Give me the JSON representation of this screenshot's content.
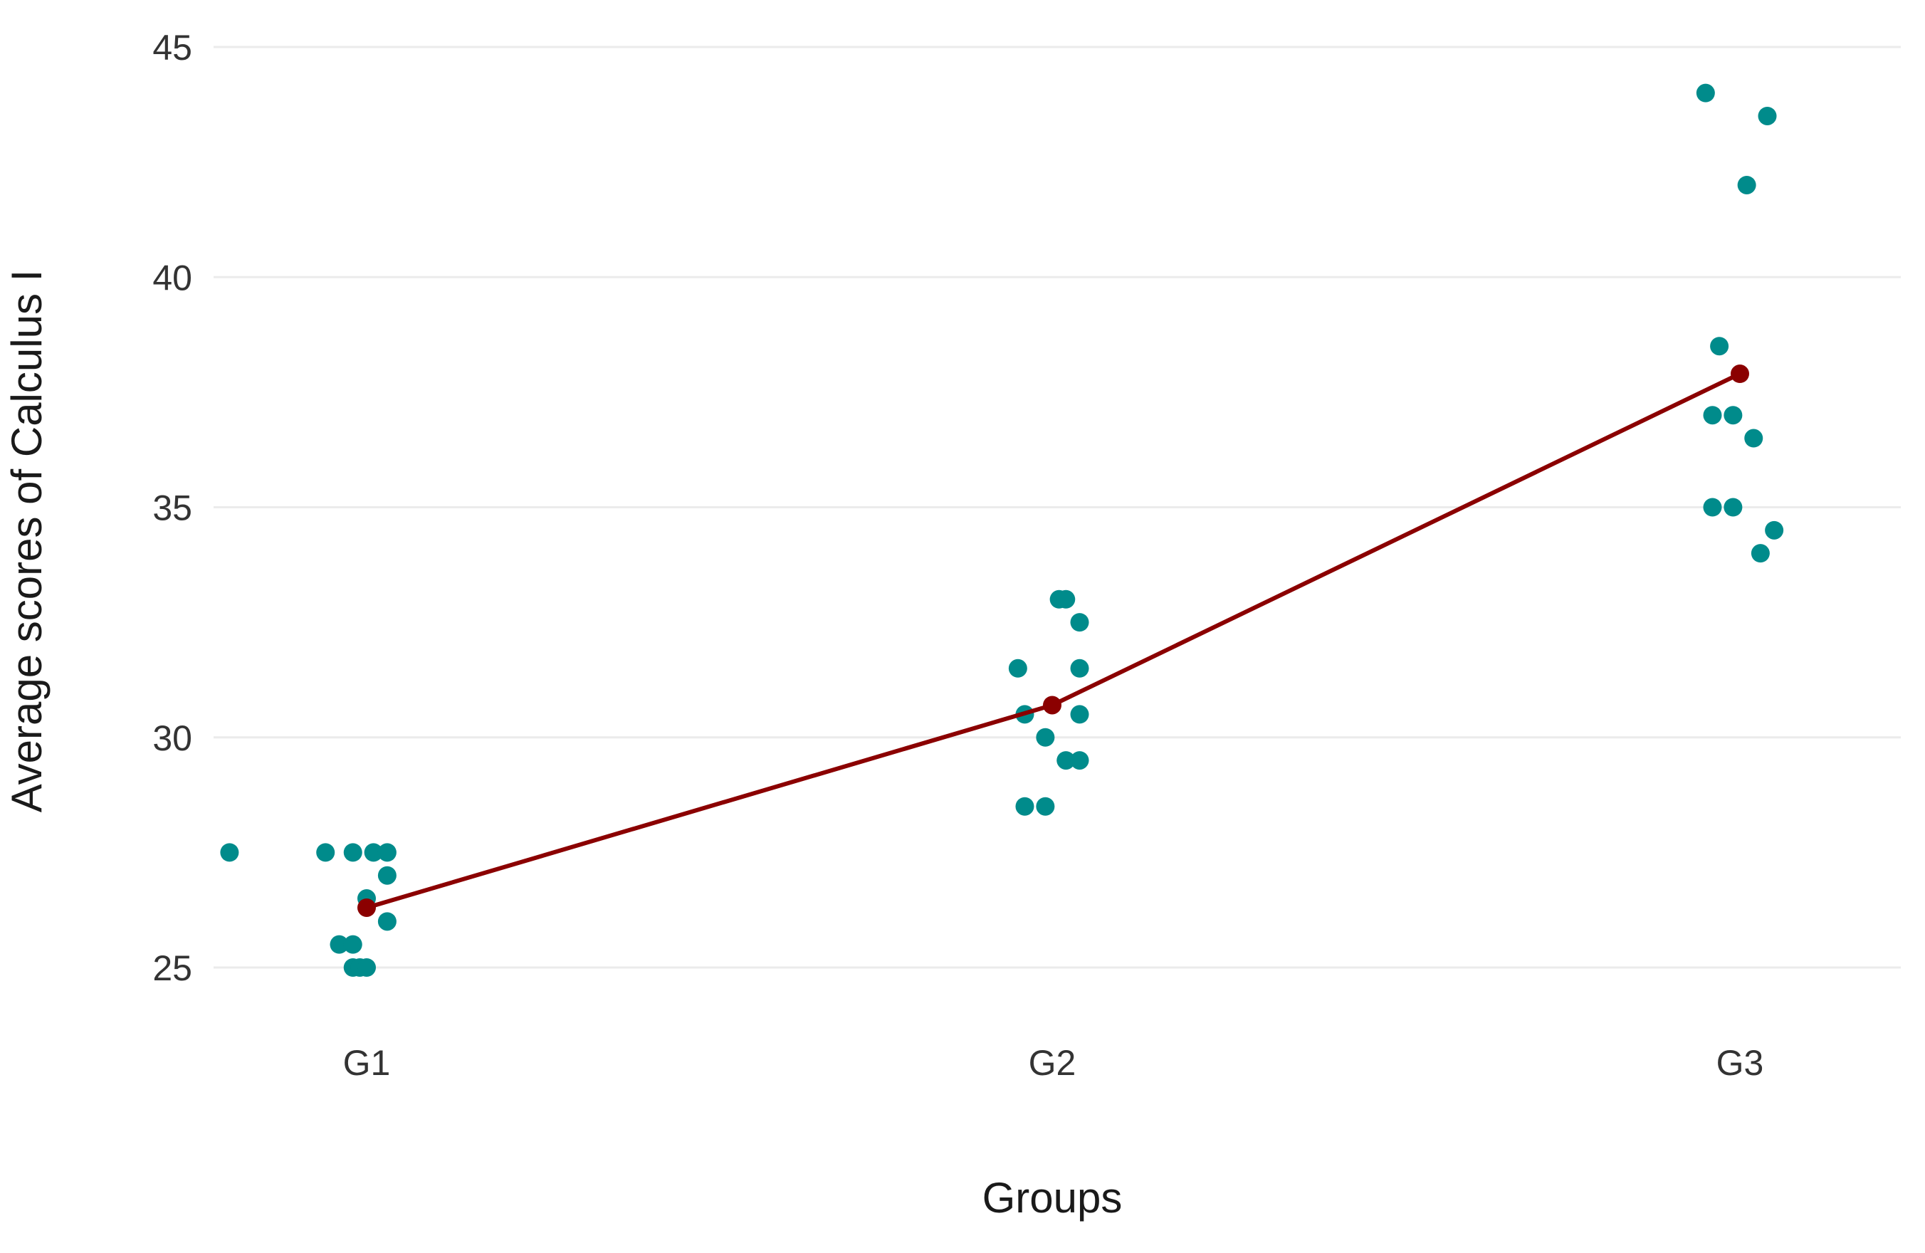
{
  "chart_data": {
    "type": "scatter",
    "title": "",
    "xlabel": "Groups",
    "ylabel": "Average scores of Calculus I",
    "categories": [
      "G1",
      "G2",
      "G3"
    ],
    "ylim": [
      23.6,
      45.2
    ],
    "yticks": [
      25,
      30,
      35,
      40,
      45
    ],
    "grid": true,
    "legend": "none",
    "series": [
      {
        "kind": "points",
        "color": "#008b8b",
        "points": [
          {
            "x": "G1",
            "jitter": -0.2,
            "y": 27.5
          },
          {
            "x": "G1",
            "jitter": -0.06,
            "y": 27.5
          },
          {
            "x": "G1",
            "jitter": -0.02,
            "y": 27.5
          },
          {
            "x": "G1",
            "jitter": 0.01,
            "y": 27.5
          },
          {
            "x": "G1",
            "jitter": 0.03,
            "y": 27.5
          },
          {
            "x": "G1",
            "jitter": 0.03,
            "y": 27.0
          },
          {
            "x": "G1",
            "jitter": 0.0,
            "y": 26.5
          },
          {
            "x": "G1",
            "jitter": 0.03,
            "y": 26.0
          },
          {
            "x": "G1",
            "jitter": -0.04,
            "y": 25.5
          },
          {
            "x": "G1",
            "jitter": -0.02,
            "y": 25.5
          },
          {
            "x": "G1",
            "jitter": -0.02,
            "y": 25.0
          },
          {
            "x": "G1",
            "jitter": -0.01,
            "y": 25.0
          },
          {
            "x": "G1",
            "jitter": 0.0,
            "y": 25.0
          },
          {
            "x": "G2",
            "jitter": 0.01,
            "y": 33.0
          },
          {
            "x": "G2",
            "jitter": 0.02,
            "y": 33.0
          },
          {
            "x": "G2",
            "jitter": 0.04,
            "y": 32.5
          },
          {
            "x": "G2",
            "jitter": -0.05,
            "y": 31.5
          },
          {
            "x": "G2",
            "jitter": 0.04,
            "y": 31.5
          },
          {
            "x": "G2",
            "jitter": -0.04,
            "y": 30.5
          },
          {
            "x": "G2",
            "jitter": 0.04,
            "y": 30.5
          },
          {
            "x": "G2",
            "jitter": -0.01,
            "y": 30.0
          },
          {
            "x": "G2",
            "jitter": 0.02,
            "y": 29.5
          },
          {
            "x": "G2",
            "jitter": 0.04,
            "y": 29.5
          },
          {
            "x": "G2",
            "jitter": -0.04,
            "y": 28.5
          },
          {
            "x": "G2",
            "jitter": -0.01,
            "y": 28.5
          },
          {
            "x": "G3",
            "jitter": -0.05,
            "y": 44.0
          },
          {
            "x": "G3",
            "jitter": 0.04,
            "y": 43.5
          },
          {
            "x": "G3",
            "jitter": 0.01,
            "y": 42.0
          },
          {
            "x": "G3",
            "jitter": -0.03,
            "y": 38.5
          },
          {
            "x": "G3",
            "jitter": -0.04,
            "y": 37.0
          },
          {
            "x": "G3",
            "jitter": -0.01,
            "y": 37.0
          },
          {
            "x": "G3",
            "jitter": 0.02,
            "y": 36.5
          },
          {
            "x": "G3",
            "jitter": -0.04,
            "y": 35.0
          },
          {
            "x": "G3",
            "jitter": -0.01,
            "y": 35.0
          },
          {
            "x": "G3",
            "jitter": 0.05,
            "y": 34.5
          },
          {
            "x": "G3",
            "jitter": 0.03,
            "y": 34.0
          }
        ]
      },
      {
        "kind": "mean-line",
        "color": "#8b0000",
        "categories": [
          "G1",
          "G2",
          "G3"
        ],
        "values": [
          26.3,
          30.7,
          37.9
        ]
      }
    ]
  }
}
